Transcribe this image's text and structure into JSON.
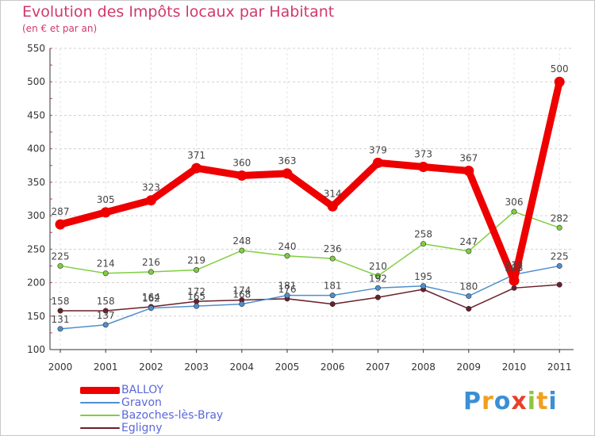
{
  "chart_data": {
    "type": "line",
    "title": "Evolution des Impôts locaux par Habitant",
    "subtitle": "(en € et par an)",
    "xlabel": "",
    "ylabel": "",
    "x": [
      "2000",
      "2001",
      "2002",
      "2003",
      "2004",
      "2005",
      "2006",
      "2007",
      "2008",
      "2009",
      "2010",
      "2011"
    ],
    "ylim": [
      100,
      550
    ],
    "yticks": [
      100,
      150,
      200,
      250,
      300,
      350,
      400,
      450,
      500,
      550
    ],
    "grid": "dashed-horizontal",
    "series": [
      {
        "name": "Egligny",
        "color": "#6b1f2a",
        "values": [
          158,
          158,
          164,
          172,
          174,
          176,
          168,
          178,
          190,
          161,
          192,
          197
        ],
        "labels": [
          "158",
          "158",
          "164",
          "172",
          "174",
          "176",
          "",
          "",
          "",
          "",
          "",
          ""
        ]
      },
      {
        "name": "Gravon",
        "color": "#4f8fcd",
        "values": [
          131,
          137,
          162,
          165,
          168,
          181,
          181,
          192,
          195,
          180,
          212,
          225
        ],
        "labels": [
          "131",
          "137",
          "162",
          "165",
          "168",
          "181",
          "181",
          "192",
          "195",
          "180",
          "212",
          "225"
        ]
      },
      {
        "name": "Bazoches-lès-Bray",
        "color": "#7fcf3f",
        "values": [
          225,
          214,
          216,
          219,
          248,
          240,
          236,
          210,
          258,
          247,
          306,
          282
        ],
        "labels": [
          "225",
          "214",
          "216",
          "219",
          "248",
          "240",
          "236",
          "210",
          "258",
          "247",
          "306",
          "282"
        ]
      },
      {
        "name": "BALLOY",
        "color": "#ee0000",
        "values": [
          287,
          305,
          323,
          371,
          360,
          363,
          314,
          379,
          373,
          367,
          203,
          500
        ],
        "labels": [
          "287",
          "305",
          "323",
          "371",
          "360",
          "363",
          "314",
          "379",
          "373",
          "367",
          "203",
          "500"
        ]
      }
    ]
  },
  "legend": [
    {
      "name": "BALLOY",
      "color": "#ee0000"
    },
    {
      "name": "Gravon",
      "color": "#4f8fcd"
    },
    {
      "name": "Bazoches-lès-Bray",
      "color": "#7fcf3f"
    },
    {
      "name": "Egligny",
      "color": "#6b1f2a"
    }
  ],
  "logo": {
    "letters": [
      "P",
      "r",
      "o",
      "x",
      "i",
      "t",
      "i"
    ],
    "colors": [
      "#3a8fd6",
      "#f0a020",
      "#3a8fd6",
      "#e8402a",
      "#8cc63f",
      "#f0a020",
      "#3a8fd6"
    ]
  }
}
